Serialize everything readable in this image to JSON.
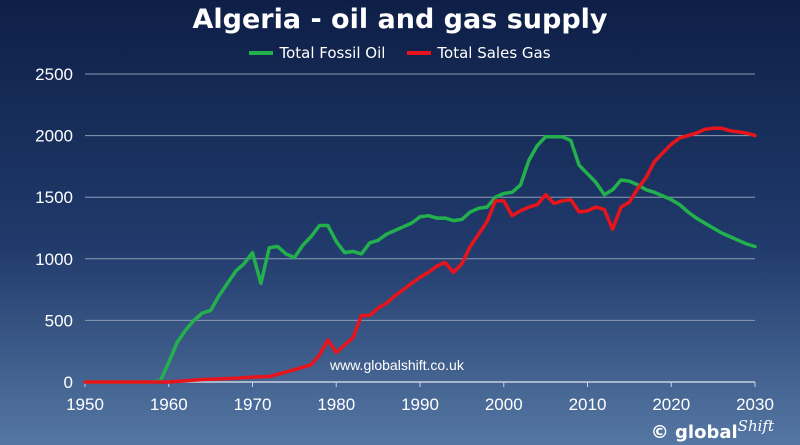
{
  "chart_data": {
    "type": "line",
    "title": "Algeria - oil and gas supply",
    "xlabel": "",
    "ylabel": "",
    "xlim": [
      1950,
      2030
    ],
    "ylim": [
      0,
      2500
    ],
    "x_ticks": [
      1950,
      1960,
      1970,
      1980,
      1990,
      2000,
      2010,
      2020,
      2030
    ],
    "y_ticks": [
      0,
      500,
      1000,
      1500,
      2000,
      2500
    ],
    "grid": "horizontal",
    "legend_position": "top-center",
    "annotation": "www.globalshift.co.uk",
    "series": [
      {
        "name": "Total Fossil Oil",
        "color": "#22b14c",
        "points": [
          [
            1950,
            0
          ],
          [
            1958,
            0
          ],
          [
            1959,
            10
          ],
          [
            1960,
            160
          ],
          [
            1961,
            320
          ],
          [
            1962,
            420
          ],
          [
            1963,
            500
          ],
          [
            1964,
            560
          ],
          [
            1965,
            580
          ],
          [
            1966,
            700
          ],
          [
            1967,
            800
          ],
          [
            1968,
            900
          ],
          [
            1969,
            960
          ],
          [
            1970,
            1050
          ],
          [
            1971,
            800
          ],
          [
            1972,
            1090
          ],
          [
            1973,
            1100
          ],
          [
            1974,
            1040
          ],
          [
            1975,
            1010
          ],
          [
            1976,
            1110
          ],
          [
            1977,
            1180
          ],
          [
            1978,
            1270
          ],
          [
            1979,
            1270
          ],
          [
            1980,
            1140
          ],
          [
            1981,
            1050
          ],
          [
            1982,
            1060
          ],
          [
            1983,
            1040
          ],
          [
            1984,
            1130
          ],
          [
            1985,
            1150
          ],
          [
            1986,
            1200
          ],
          [
            1987,
            1230
          ],
          [
            1988,
            1260
          ],
          [
            1989,
            1290
          ],
          [
            1990,
            1340
          ],
          [
            1991,
            1350
          ],
          [
            1992,
            1330
          ],
          [
            1993,
            1330
          ],
          [
            1994,
            1310
          ],
          [
            1995,
            1320
          ],
          [
            1996,
            1380
          ],
          [
            1997,
            1410
          ],
          [
            1998,
            1420
          ],
          [
            1999,
            1500
          ],
          [
            2000,
            1530
          ],
          [
            2001,
            1540
          ],
          [
            2002,
            1600
          ],
          [
            2003,
            1800
          ],
          [
            2004,
            1920
          ],
          [
            2005,
            1990
          ],
          [
            2006,
            1990
          ],
          [
            2007,
            1990
          ],
          [
            2008,
            1960
          ],
          [
            2009,
            1760
          ],
          [
            2010,
            1690
          ],
          [
            2011,
            1620
          ],
          [
            2012,
            1520
          ],
          [
            2013,
            1560
          ],
          [
            2014,
            1640
          ],
          [
            2015,
            1630
          ],
          [
            2016,
            1600
          ],
          [
            2017,
            1560
          ],
          [
            2018,
            1540
          ],
          [
            2019,
            1510
          ],
          [
            2020,
            1480
          ],
          [
            2021,
            1440
          ],
          [
            2022,
            1380
          ],
          [
            2023,
            1330
          ],
          [
            2024,
            1290
          ],
          [
            2025,
            1250
          ],
          [
            2026,
            1210
          ],
          [
            2027,
            1180
          ],
          [
            2028,
            1150
          ],
          [
            2029,
            1120
          ],
          [
            2030,
            1100
          ]
        ]
      },
      {
        "name": "Total Sales Gas",
        "color": "#e8141c",
        "points": [
          [
            1950,
            0
          ],
          [
            1960,
            0
          ],
          [
            1962,
            10
          ],
          [
            1964,
            20
          ],
          [
            1966,
            25
          ],
          [
            1968,
            30
          ],
          [
            1970,
            40
          ],
          [
            1972,
            45
          ],
          [
            1974,
            80
          ],
          [
            1976,
            120
          ],
          [
            1977,
            140
          ],
          [
            1978,
            220
          ],
          [
            1979,
            340
          ],
          [
            1980,
            240
          ],
          [
            1981,
            300
          ],
          [
            1982,
            360
          ],
          [
            1983,
            540
          ],
          [
            1984,
            540
          ],
          [
            1985,
            600
          ],
          [
            1986,
            640
          ],
          [
            1987,
            700
          ],
          [
            1988,
            750
          ],
          [
            1989,
            800
          ],
          [
            1990,
            850
          ],
          [
            1991,
            890
          ],
          [
            1992,
            940
          ],
          [
            1993,
            970
          ],
          [
            1994,
            890
          ],
          [
            1995,
            960
          ],
          [
            1996,
            1100
          ],
          [
            1997,
            1200
          ],
          [
            1998,
            1300
          ],
          [
            1999,
            1470
          ],
          [
            2000,
            1470
          ],
          [
            2001,
            1350
          ],
          [
            2002,
            1390
          ],
          [
            2003,
            1420
          ],
          [
            2004,
            1440
          ],
          [
            2005,
            1520
          ],
          [
            2006,
            1450
          ],
          [
            2007,
            1470
          ],
          [
            2008,
            1480
          ],
          [
            2009,
            1380
          ],
          [
            2010,
            1390
          ],
          [
            2011,
            1420
          ],
          [
            2012,
            1400
          ],
          [
            2013,
            1240
          ],
          [
            2014,
            1420
          ],
          [
            2015,
            1460
          ],
          [
            2016,
            1570
          ],
          [
            2017,
            1660
          ],
          [
            2018,
            1790
          ],
          [
            2019,
            1860
          ],
          [
            2020,
            1930
          ],
          [
            2021,
            1980
          ],
          [
            2022,
            2000
          ],
          [
            2023,
            2020
          ],
          [
            2024,
            2050
          ],
          [
            2025,
            2060
          ],
          [
            2026,
            2060
          ],
          [
            2027,
            2040
          ],
          [
            2028,
            2030
          ],
          [
            2029,
            2020
          ],
          [
            2030,
            2000
          ]
        ]
      }
    ]
  },
  "footer": {
    "logo_text": "© global",
    "logo_script": "Shift"
  }
}
